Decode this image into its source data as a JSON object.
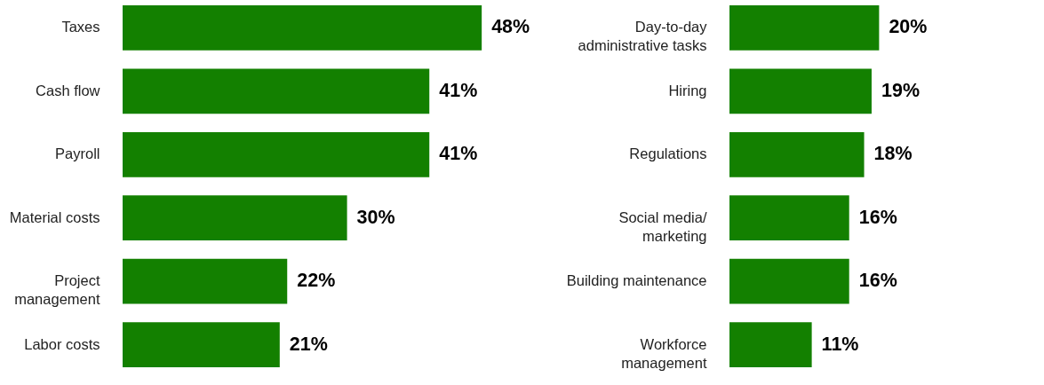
{
  "chart_data": [
    {
      "type": "bar",
      "orientation": "horizontal",
      "categories": [
        "Taxes",
        "Cash flow",
        "Payroll",
        "Material costs",
        "Project\nmanagement",
        "Labor costs"
      ],
      "values": [
        48,
        41,
        41,
        30,
        22,
        21
      ],
      "value_labels": [
        "48%",
        "41%",
        "41%",
        "30%",
        "22%",
        "21%"
      ],
      "color": "#138000",
      "tick_labels": "y"
    },
    {
      "type": "bar",
      "orientation": "horizontal",
      "categories": [
        "Day-to-day\nadministrative tasks",
        "Hiring",
        "Regulations",
        "Social media/\nmarketing",
        "Building maintenance",
        "Workforce\nmanagement"
      ],
      "values": [
        20,
        19,
        18,
        16,
        16,
        11
      ],
      "value_labels": [
        "20%",
        "19%",
        "18%",
        "16%",
        "16%",
        "11%"
      ],
      "color": "#138000",
      "tick_labels": "y"
    }
  ]
}
